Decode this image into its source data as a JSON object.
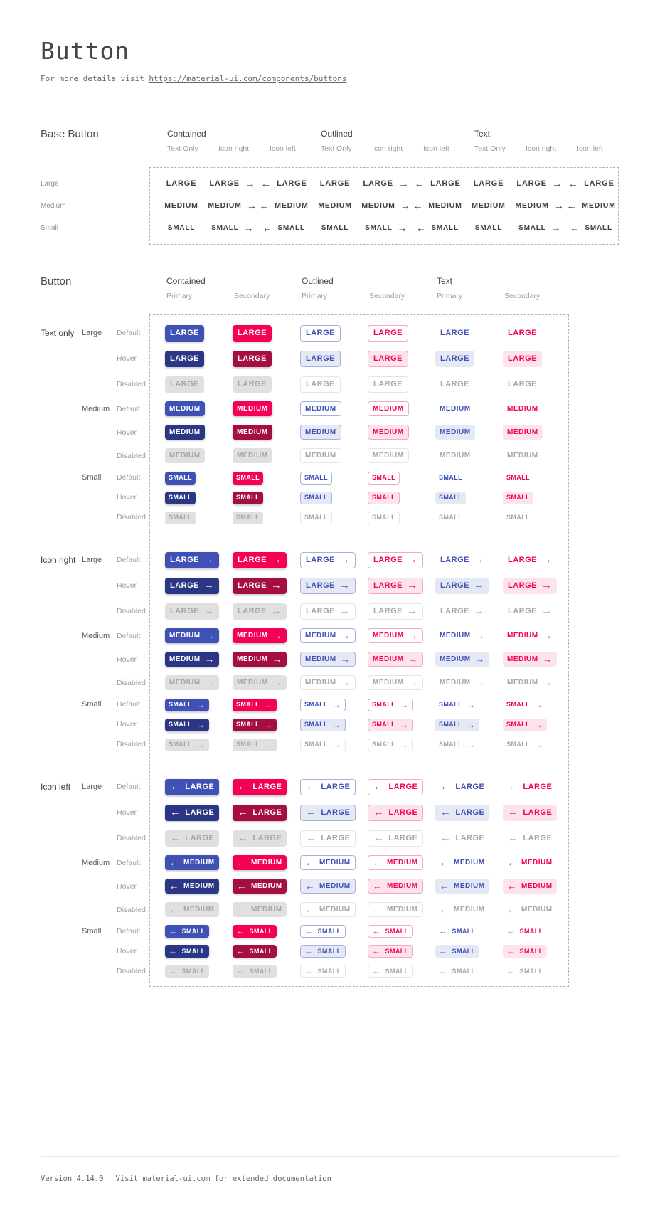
{
  "page": {
    "title": "Button",
    "subtitle_prefix": "For more details visit ",
    "subtitle_link": "https://material-ui.com/components/buttons",
    "footer_version": "Version 4.14.0",
    "footer_note": "Visit material-ui.com for extended documentation"
  },
  "icons": {
    "arrow_right": "→",
    "arrow_left": "←"
  },
  "colors": {
    "primary": "#3F51B5",
    "primary_dark": "#2B3784",
    "secondary": "#F50057",
    "secondary_dark": "#A50E42",
    "primary_tint": "#E5E8F5",
    "secondary_tint": "#FCE3ED",
    "outlined_primary_border": "#A8B1DD",
    "outlined_secondary_border": "#F5A8C1",
    "disabled_bg": "#E0E0E0",
    "disabled_text": "#A7A7A7",
    "disabled_border": "#E5E5E5"
  },
  "base_section": {
    "title": "Base Button",
    "groups": [
      "Contained",
      "Outlined",
      "Text"
    ],
    "variants": [
      "Text Only",
      "Icon right",
      "Icon left"
    ],
    "rows": [
      {
        "label": "Large",
        "text": "LARGE",
        "size": "lg"
      },
      {
        "label": "Medium",
        "text": "MEDIUM",
        "size": "md"
      },
      {
        "label": "Small",
        "text": "SMALL",
        "size": "sm"
      }
    ]
  },
  "button_section": {
    "title": "Button",
    "groups": [
      "Contained",
      "Outlined",
      "Text"
    ],
    "variants": [
      "Primary",
      "Secondary"
    ],
    "row_groups": [
      {
        "label": "Text only",
        "icon": "none"
      },
      {
        "label": "Icon right",
        "icon": "right"
      },
      {
        "label": "Icon left",
        "icon": "left"
      }
    ],
    "sizes": [
      {
        "label": "Large",
        "text": "LARGE",
        "size": "lg"
      },
      {
        "label": "Medium",
        "text": "MEDIUM",
        "size": "md"
      },
      {
        "label": "Small",
        "text": "SMALL",
        "size": "sm"
      }
    ],
    "states": [
      "Default",
      "Hover",
      "Disabled"
    ]
  }
}
